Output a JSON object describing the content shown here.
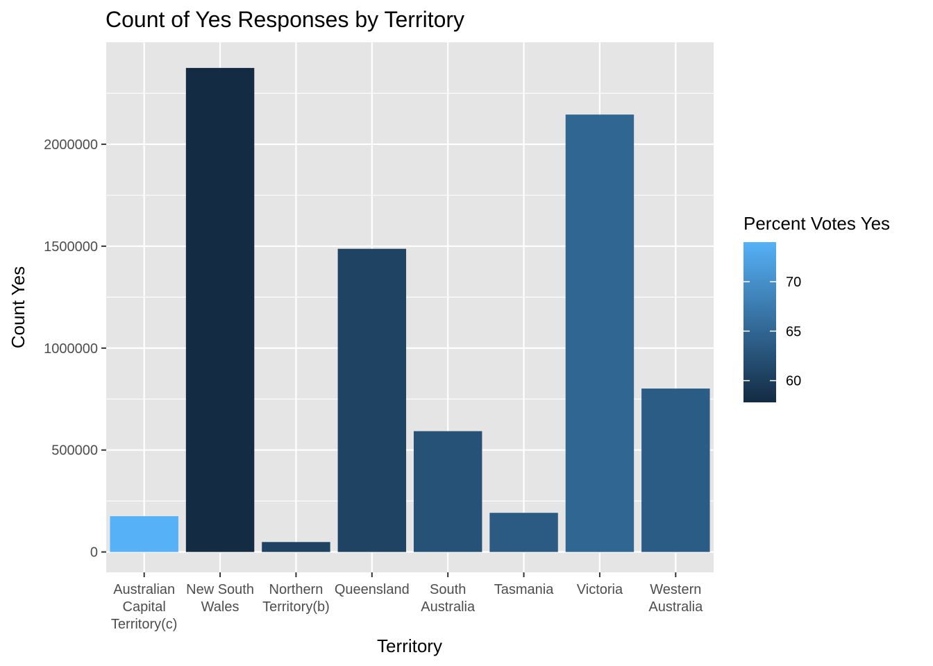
{
  "chart_data": {
    "type": "bar",
    "title": "Count of Yes Responses by Territory",
    "xlabel": "Territory",
    "ylabel": "Count Yes",
    "categories": [
      [
        "Australian",
        "Capital",
        "Territory(c)"
      ],
      [
        "New South",
        "Wales"
      ],
      [
        "Northern",
        "Territory(b)"
      ],
      [
        "Queensland"
      ],
      [
        "South",
        "Australia"
      ],
      [
        "Tasmania"
      ],
      [
        "Victoria"
      ],
      [
        "Western",
        "Australia"
      ]
    ],
    "values": [
      175459,
      2374362,
      48686,
      1487060,
      592528,
      191948,
      2145629,
      801575
    ],
    "fill_values": [
      74.0,
      57.8,
      60.6,
      60.7,
      62.5,
      63.6,
      64.9,
      63.7
    ],
    "ylim": [
      -100000,
      2500000
    ],
    "yticks": [
      0,
      500000,
      1000000,
      1500000,
      2000000
    ],
    "ytick_labels": [
      "0",
      "500000",
      "1000000",
      "1500000",
      "2000000"
    ],
    "grid": true,
    "legend": {
      "title": "Percent Votes Yes",
      "position": "right",
      "range": [
        57.8,
        74.0
      ],
      "breaks": [
        60,
        65,
        70
      ],
      "break_labels": [
        "60",
        "65",
        "70"
      ],
      "low_color": "#132b43",
      "high_color": "#56b1f7"
    },
    "colors": {
      "panel_background": "#e5e5e5",
      "grid": "#ffffff"
    }
  }
}
